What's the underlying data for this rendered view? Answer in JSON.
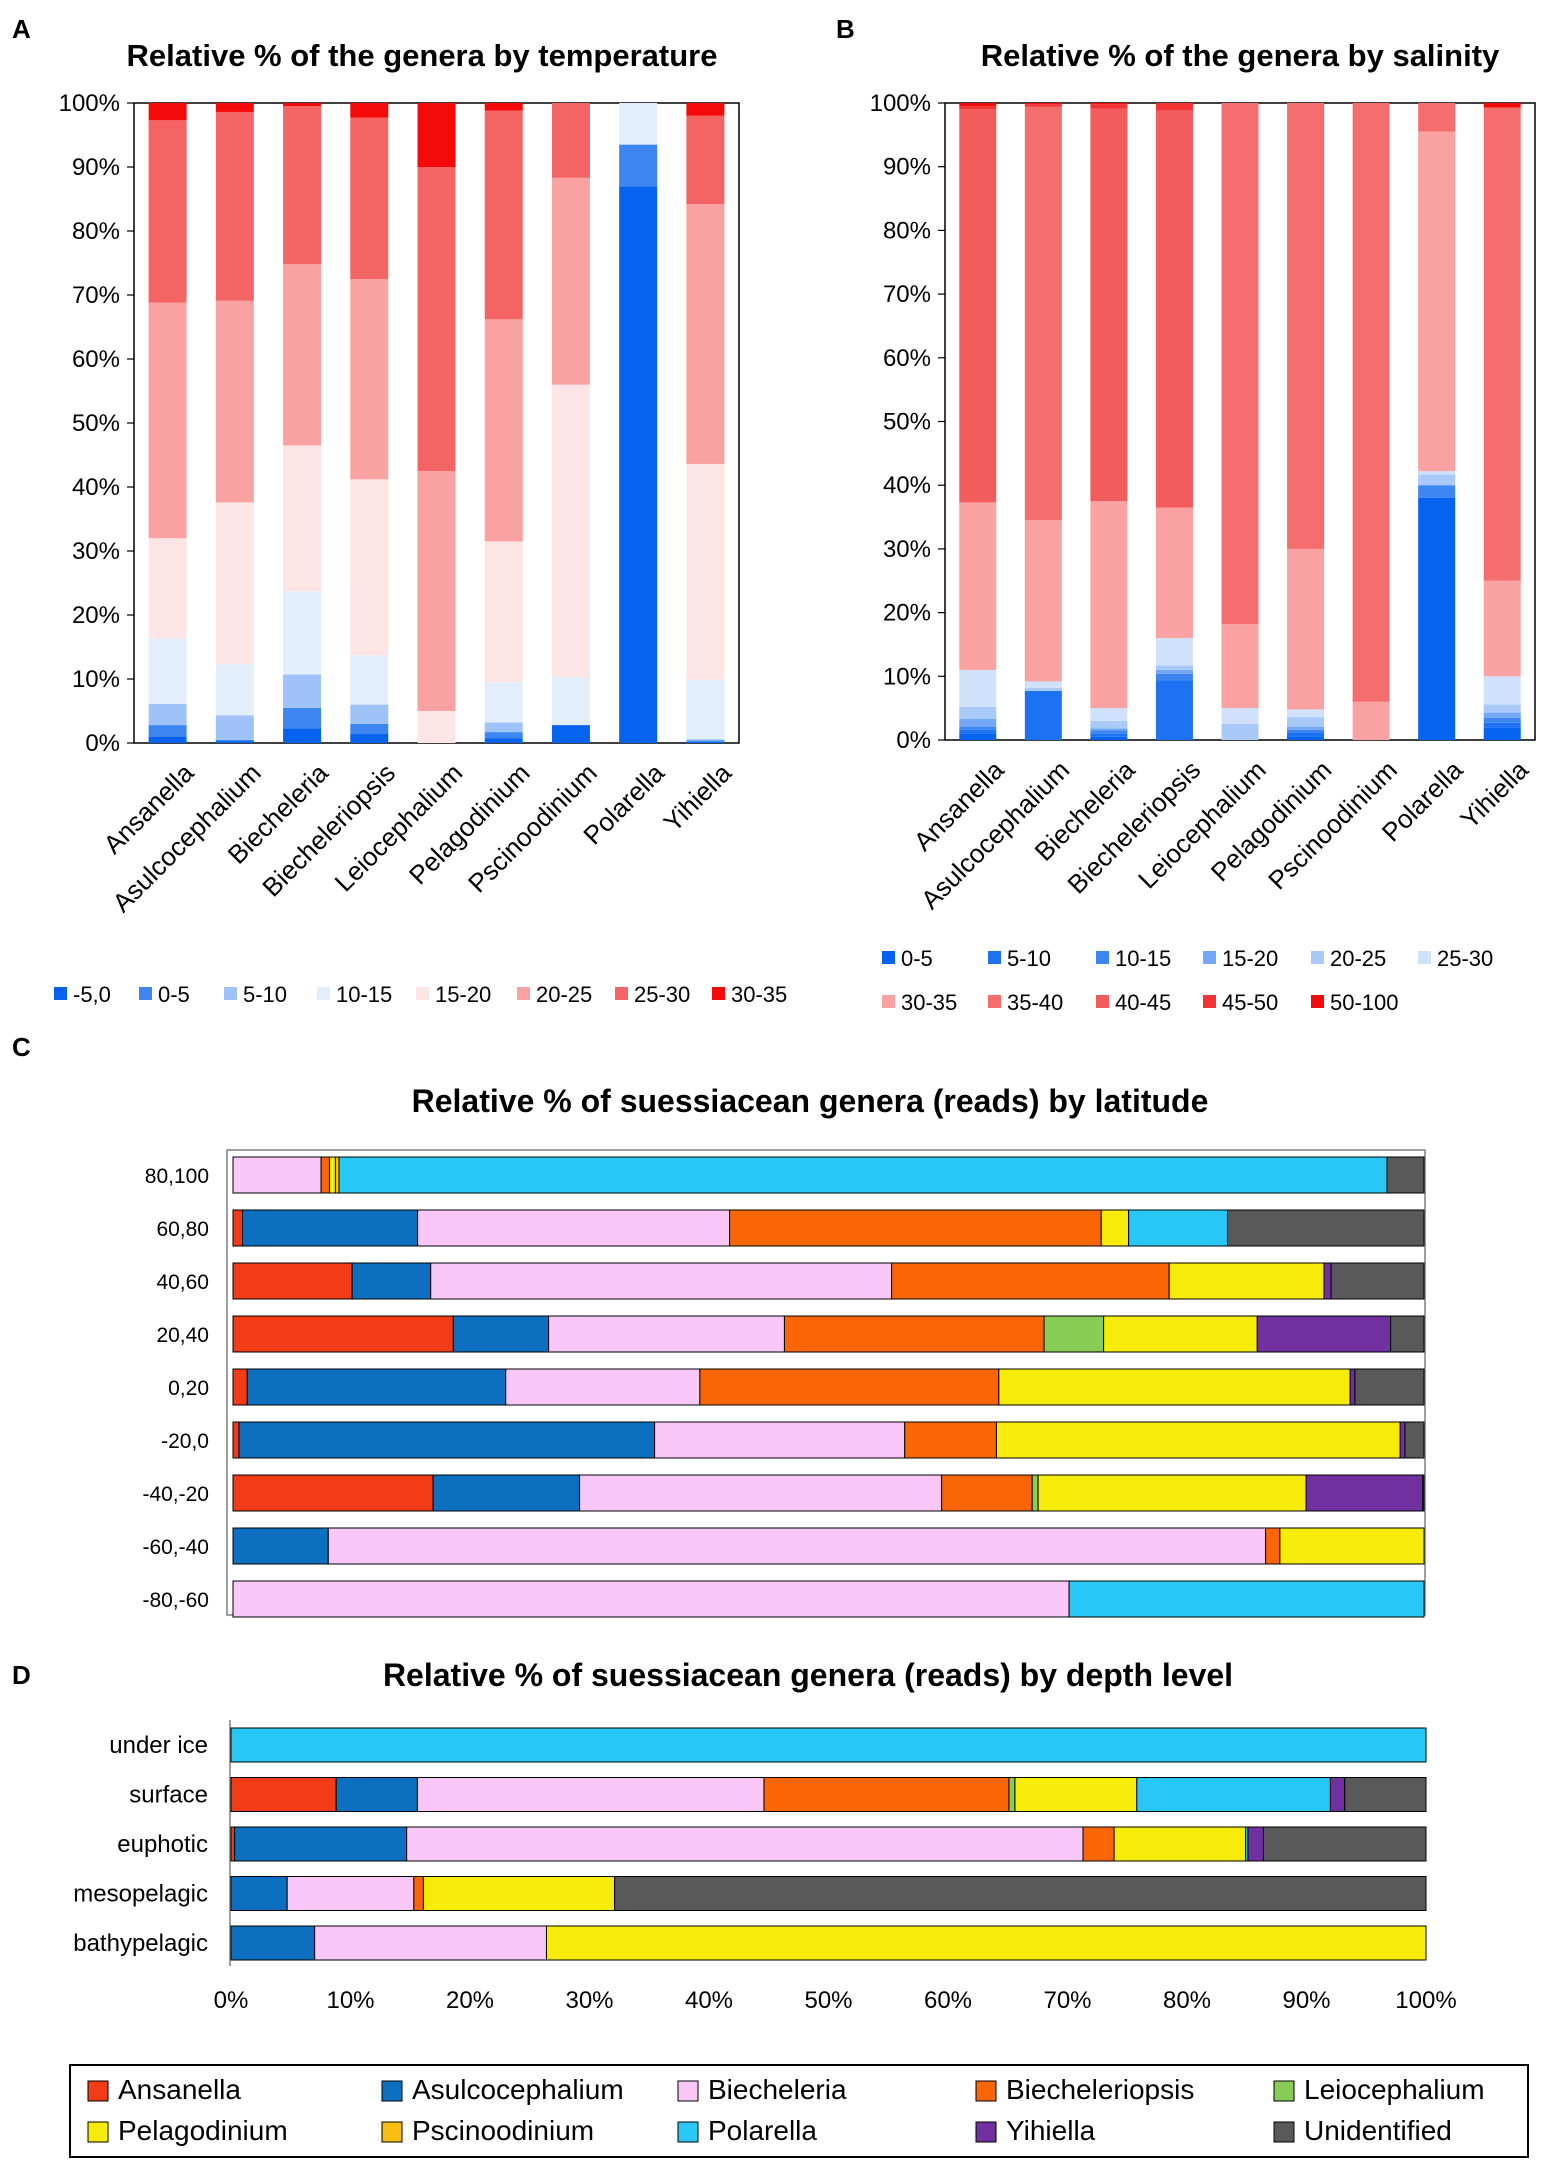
{
  "panels": {
    "A": "A",
    "B": "B",
    "C": "C",
    "D": "D"
  },
  "chart_data": [
    {
      "id": "A",
      "type": "bar",
      "stacked": true,
      "orientation": "vertical",
      "title": "Relative % of the genera by temperature",
      "categories": [
        "Ansanella",
        "Asulcocephalium",
        "Biecheleria",
        "Biecheleriopsis",
        "Leiocephalium",
        "Pelagodinium",
        "Pscinoodinium",
        "Polarella",
        "Yihiella"
      ],
      "ylim": [
        0,
        100
      ],
      "yticks": [
        "0%",
        "10%",
        "20%",
        "30%",
        "40%",
        "50%",
        "60%",
        "70%",
        "80%",
        "90%",
        "100%"
      ],
      "legend_position": "bottom",
      "series": [
        {
          "name": "-5,0",
          "color": "#0563F0",
          "values": [
            1,
            0.3,
            2.3,
            1.4,
            0,
            0.7,
            2.8,
            87,
            0.2
          ]
        },
        {
          "name": "0-5",
          "color": "#3D86F2",
          "values": [
            1.8,
            0.2,
            3.2,
            1.6,
            0,
            1,
            0,
            6.5,
            0.2
          ]
        },
        {
          "name": "5-10",
          "color": "#9FC3F8",
          "values": [
            3.3,
            3.8,
            5.2,
            3,
            0,
            1.5,
            0,
            0,
            0.2
          ]
        },
        {
          "name": "10-15",
          "color": "#E3EEFC",
          "values": [
            10.3,
            8,
            13,
            7.7,
            0,
            6.3,
            7.5,
            6.5,
            9.3
          ]
        },
        {
          "name": "15-20",
          "color": "#FDE5E5",
          "values": [
            15.6,
            25.3,
            22.8,
            27.5,
            5,
            22,
            45.7,
            0,
            33.7
          ]
        },
        {
          "name": "20-25",
          "color": "#FAA2A2",
          "values": [
            36.8,
            31.5,
            28.3,
            31.3,
            37.5,
            34.7,
            32.3,
            0,
            40.6
          ]
        },
        {
          "name": "25-30",
          "color": "#F46464",
          "values": [
            28.5,
            29.5,
            24.7,
            25.2,
            47.5,
            32.6,
            11.7,
            0,
            13.8
          ]
        },
        {
          "name": "30-35",
          "color": "#F50A0A",
          "values": [
            2.7,
            1.4,
            0.5,
            2.3,
            10,
            1.2,
            0,
            0,
            2
          ]
        }
      ]
    },
    {
      "id": "B",
      "type": "bar",
      "stacked": true,
      "orientation": "vertical",
      "title": "Relative % of the genera by salinity",
      "categories": [
        "Ansanella",
        "Asulcocephalium",
        "Biecheleria",
        "Biecheleriopsis",
        "Leiocephalium",
        "Pelagodinium",
        "Pscinoodinium",
        "Polarella",
        "Yihiella"
      ],
      "ylim": [
        0,
        100
      ],
      "yticks": [
        "0%",
        "10%",
        "20%",
        "30%",
        "40%",
        "50%",
        "60%",
        "70%",
        "80%",
        "90%",
        "100%"
      ],
      "legend_position": "bottom",
      "series": [
        {
          "name": "0-5",
          "color": "#0563F0",
          "values": [
            1,
            0,
            0.5,
            0,
            0,
            0.6,
            0,
            38,
            2
          ]
        },
        {
          "name": "5-10",
          "color": "#1C72F2",
          "values": [
            0.6,
            7.7,
            0.5,
            9.4,
            0,
            0.6,
            0,
            0,
            0.7
          ]
        },
        {
          "name": "10-15",
          "color": "#3D86F2",
          "values": [
            0.5,
            0,
            0.5,
            1,
            0,
            0.4,
            0,
            2,
            0.8
          ]
        },
        {
          "name": "15-20",
          "color": "#74A7F5",
          "values": [
            1.2,
            0,
            0.3,
            0.6,
            0,
            0.5,
            0,
            0,
            0.8
          ]
        },
        {
          "name": "20-25",
          "color": "#A9CAF8",
          "values": [
            1.9,
            0.5,
            1.2,
            0.7,
            2.5,
            1.5,
            0,
            1.7,
            1.3
          ]
        },
        {
          "name": "25-30",
          "color": "#CFE1FB",
          "values": [
            5.8,
            1,
            2,
            4.3,
            2.5,
            1.2,
            0,
            0.5,
            4.4
          ]
        },
        {
          "name": "30-35",
          "color": "#FAA2A2",
          "values": [
            26.3,
            25.3,
            32.5,
            20.5,
            13.2,
            25.2,
            6,
            53.3,
            15
          ]
        },
        {
          "name": "35-40",
          "color": "#F46E6E",
          "values": [
            0,
            64.9,
            0,
            0,
            81.8,
            70,
            94,
            4.5,
            74.3
          ]
        },
        {
          "name": "40-45",
          "color": "#F25C5C",
          "values": [
            61.7,
            0,
            61.6,
            62.3,
            0,
            0,
            0,
            0,
            0
          ]
        },
        {
          "name": "45-50",
          "color": "#F33434",
          "values": [
            0.5,
            0.4,
            0.7,
            1.2,
            0,
            0,
            0,
            0,
            0
          ]
        },
        {
          "name": "50-100",
          "color": "#F50A0A",
          "values": [
            0.5,
            0.2,
            0.2,
            0,
            0,
            0,
            0,
            0,
            0.7
          ]
        }
      ]
    },
    {
      "id": "C",
      "type": "bar",
      "stacked": true,
      "orientation": "horizontal",
      "title": "Relative % of suessiacean genera (reads) by latitude",
      "categories": [
        "80,100",
        "60,80",
        "40,60",
        "20,40",
        "0,20",
        "-20,0",
        "-40,-20",
        "-60,-40",
        "-80,-60"
      ],
      "xlim": [
        0,
        100
      ],
      "series": [
        {
          "name": "Ansanella",
          "color": "#F23C17",
          "values": [
            0,
            0.8,
            10,
            18.5,
            1.2,
            0.5,
            16.8,
            0,
            0
          ]
        },
        {
          "name": "Asulcocephalium",
          "color": "#0D6FBF",
          "values": [
            0,
            14.7,
            6.6,
            8,
            21.7,
            34.9,
            12.3,
            8,
            0
          ]
        },
        {
          "name": "Biecheleria",
          "color": "#F9C7F7",
          "values": [
            7.4,
            26.2,
            38.7,
            19.8,
            16.3,
            21,
            30.4,
            78.7,
            70.2
          ]
        },
        {
          "name": "Biecheleriopsis",
          "color": "#FA6605",
          "values": [
            0.7,
            31.2,
            23.3,
            21.8,
            25.1,
            7.7,
            7.6,
            1.2,
            0
          ]
        },
        {
          "name": "Leiocephalium",
          "color": "#88CC55",
          "values": [
            0,
            0,
            0,
            5,
            0,
            0,
            0.5,
            0,
            0
          ]
        },
        {
          "name": "Pelagodinium",
          "color": "#F6EB09",
          "values": [
            0.5,
            2.3,
            13,
            12.9,
            29.5,
            33.9,
            22.5,
            12.1,
            0
          ]
        },
        {
          "name": "Pscinoodinium",
          "color": "#F9BE14",
          "values": [
            0.3,
            0,
            0,
            0,
            0,
            0,
            0,
            0,
            0
          ]
        },
        {
          "name": "Polarella",
          "color": "#27C8F5",
          "values": [
            88,
            8.3,
            0,
            0,
            0,
            0,
            0,
            0,
            29.8
          ]
        },
        {
          "name": "Yihiella",
          "color": "#7030A0",
          "values": [
            0,
            0,
            0.6,
            11.2,
            0.4,
            0.4,
            9.8,
            0,
            0
          ]
        },
        {
          "name": "Unidentified",
          "color": "#595959",
          "values": [
            3.1,
            16.5,
            7.8,
            2.8,
            5.8,
            1.6,
            0.1,
            0,
            0
          ]
        }
      ]
    },
    {
      "id": "D",
      "type": "bar",
      "stacked": true,
      "orientation": "horizontal",
      "title": "Relative % of suessiacean genera (reads) by depth level",
      "categories": [
        "under ice",
        "surface",
        "euphotic",
        "mesopelagic",
        "bathypelagic"
      ],
      "xlim": [
        0,
        100
      ],
      "xticks": [
        "0%",
        "10%",
        "20%",
        "30%",
        "40%",
        "50%",
        "60%",
        "70%",
        "80%",
        "90%",
        "100%"
      ],
      "series": [
        {
          "name": "Ansanella",
          "color": "#F23C17",
          "values": [
            0,
            8.8,
            0.3,
            0,
            0
          ]
        },
        {
          "name": "Asulcocephalium",
          "color": "#0D6FBF",
          "values": [
            0,
            6.8,
            14.4,
            4.7,
            7
          ]
        },
        {
          "name": "Biecheleria",
          "color": "#F9C7F7",
          "values": [
            0,
            29,
            56.6,
            10.6,
            19.4
          ]
        },
        {
          "name": "Biecheleriopsis",
          "color": "#FA6605",
          "values": [
            0,
            20.5,
            2.6,
            0.8,
            0
          ]
        },
        {
          "name": "Leiocephalium",
          "color": "#88CC55",
          "values": [
            0,
            0.5,
            0,
            0,
            0
          ]
        },
        {
          "name": "Pelagodinium",
          "color": "#F6EB09",
          "values": [
            0,
            10.2,
            11,
            16,
            73.6
          ]
        },
        {
          "name": "Pscinoodinium",
          "color": "#F9BE14",
          "values": [
            0,
            0,
            0,
            0,
            0
          ]
        },
        {
          "name": "Polarella",
          "color": "#27C8F5",
          "values": [
            100,
            16.2,
            0.2,
            0,
            0
          ]
        },
        {
          "name": "Yihiella",
          "color": "#7030A0",
          "values": [
            0,
            1.2,
            1.3,
            0,
            0
          ]
        },
        {
          "name": "Unidentified",
          "color": "#595959",
          "values": [
            0,
            6.8,
            13.6,
            67.9,
            0
          ]
        }
      ]
    }
  ]
}
